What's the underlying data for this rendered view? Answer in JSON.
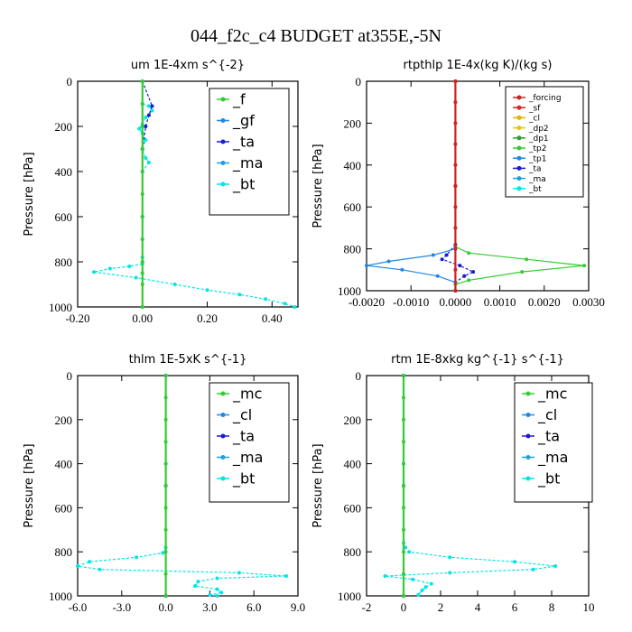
{
  "figure_title": "044_f2c_c4  BUDGET at355E,-5N",
  "chart_data": [
    {
      "type": "line",
      "title": "um  1E-4xm s^{-2}",
      "ylabel": "Pressure [hPa]",
      "xlim": [
        -0.2,
        0.48
      ],
      "ylim": [
        1000,
        0
      ],
      "xticks": [
        -0.2,
        0.0,
        0.2,
        0.4
      ],
      "xtick_labels": [
        "-0.20",
        "0.00",
        "0.20",
        "0.40"
      ],
      "yticks": [
        0,
        200,
        400,
        600,
        800,
        1000
      ],
      "ytick_labels": [
        "0",
        "200",
        "400",
        "600",
        "800",
        "1000"
      ],
      "legend_position": "top-right",
      "series": [
        {
          "name": "_f",
          "color": "#33cc33",
          "x": [
            0,
            0,
            0,
            0,
            0,
            0,
            0,
            0,
            0,
            0,
            0,
            0
          ],
          "y": [
            0,
            100,
            200,
            300,
            400,
            500,
            600,
            700,
            800,
            850,
            900,
            1000
          ]
        },
        {
          "name": "_gf",
          "color": "#1e88e5",
          "x": [
            0,
            0,
            0,
            0,
            0,
            0
          ],
          "y": [
            0,
            200,
            400,
            600,
            800,
            1000
          ]
        },
        {
          "name": "_ta",
          "color": "#1a1ad6",
          "x": [
            0,
            0.03,
            0.02,
            0.01,
            0.0,
            0.0
          ],
          "y": [
            0,
            110,
            150,
            200,
            300,
            1000
          ]
        },
        {
          "name": "_ma",
          "color": "#1ea0e0",
          "x": [
            0,
            0,
            0,
            0
          ],
          "y": [
            0,
            300,
            700,
            1000
          ]
        },
        {
          "name": "_bt",
          "color": "#00e5e5",
          "x": [
            0.0,
            0.02,
            0.03,
            0.01,
            0.0,
            -0.01,
            0.0,
            0.01,
            0.0,
            0.01,
            0.02,
            0.0,
            0.0,
            0.0,
            0.0,
            -0.04,
            -0.1,
            -0.15,
            -0.02,
            0.1,
            0.2,
            0.3,
            0.38,
            0.44,
            0.47
          ],
          "y": [
            100,
            110,
            130,
            160,
            190,
            210,
            230,
            260,
            300,
            340,
            360,
            400,
            600,
            780,
            810,
            820,
            830,
            845,
            870,
            900,
            925,
            945,
            965,
            985,
            1000
          ]
        }
      ]
    },
    {
      "type": "line",
      "title": "rtpthlp  1E-4x(kg K)/(kg s)",
      "ylabel": "Pressure [hPa]",
      "xlim": [
        -0.002,
        0.003
      ],
      "ylim": [
        1000,
        0
      ],
      "xticks": [
        -0.002,
        -0.001,
        0.0,
        0.001,
        0.002,
        0.003
      ],
      "xtick_labels": [
        "-0.0020",
        "-0.0010",
        "0.0000",
        "0.0010",
        "0.0020",
        "0.0030"
      ],
      "yticks": [
        0,
        200,
        400,
        600,
        800,
        1000
      ],
      "ytick_labels": [
        "0",
        "200",
        "400",
        "600",
        "800",
        "1000"
      ],
      "legend_position": "top-right",
      "series": [
        {
          "name": "_forcing",
          "color": "#cc2222",
          "x": [
            0,
            0,
            0,
            0,
            0,
            0,
            0,
            0,
            0,
            0,
            0
          ],
          "y": [
            0,
            100,
            200,
            300,
            400,
            500,
            600,
            700,
            800,
            900,
            1000
          ]
        },
        {
          "name": "_sf",
          "color": "#dd2222",
          "x": [
            0,
            0,
            0
          ],
          "y": [
            0,
            500,
            1000
          ]
        },
        {
          "name": "_cl",
          "color": "#e0b000",
          "x": [
            0,
            0,
            0
          ],
          "y": [
            0,
            500,
            1000
          ]
        },
        {
          "name": "_dp2",
          "color": "#e6c800",
          "x": [
            0,
            0,
            0
          ],
          "y": [
            0,
            500,
            1000
          ]
        },
        {
          "name": "_dp1",
          "color": "#2e9e2e",
          "x": [
            0,
            0,
            0
          ],
          "y": [
            0,
            500,
            1000
          ]
        },
        {
          "name": "_tp2",
          "color": "#33cc33",
          "x": [
            0,
            0.0003,
            0.0016,
            0.0029,
            0.0015,
            0.0003,
            0
          ],
          "y": [
            790,
            820,
            850,
            880,
            910,
            950,
            970
          ]
        },
        {
          "name": "_tp1",
          "color": "#1e88e5",
          "x": [
            0,
            -0.0005,
            -0.0015,
            -0.002,
            -0.0012,
            -0.0004,
            0
          ],
          "y": [
            800,
            830,
            860,
            880,
            900,
            930,
            960
          ]
        },
        {
          "name": "_ta",
          "color": "#1a1ad6",
          "x": [
            0,
            -0.0002,
            -0.0003,
            0.0001,
            0.0004,
            0.0002,
            0
          ],
          "y": [
            780,
            830,
            850,
            880,
            910,
            930,
            960
          ]
        },
        {
          "name": "_ma",
          "color": "#1ea0e0",
          "x": [
            0,
            0,
            0
          ],
          "y": [
            0,
            500,
            1000
          ]
        },
        {
          "name": "_bt",
          "color": "#00e5e5",
          "x": [
            0,
            0,
            0
          ],
          "y": [
            0,
            500,
            1000
          ]
        }
      ]
    },
    {
      "type": "line",
      "title": "thlm  1E-5xK s^{-1}",
      "ylabel": "Pressure [hPa]",
      "xlim": [
        -6.0,
        9.0
      ],
      "ylim": [
        1000,
        0
      ],
      "xticks": [
        -6,
        -3,
        0,
        3,
        6,
        9
      ],
      "xtick_labels": [
        "-6.0",
        "-3.0",
        "0.0",
        "3.0",
        "6.0",
        "9.0"
      ],
      "yticks": [
        0,
        200,
        400,
        600,
        800,
        1000
      ],
      "ytick_labels": [
        "0",
        "200",
        "400",
        "600",
        "800",
        "1000"
      ],
      "legend_position": "top-right",
      "series": [
        {
          "name": "_mc",
          "color": "#33cc33",
          "x": [
            0,
            0,
            0,
            0,
            0,
            0,
            0,
            0,
            0,
            0,
            0
          ],
          "y": [
            0,
            100,
            200,
            300,
            400,
            500,
            600,
            700,
            800,
            900,
            1000
          ]
        },
        {
          "name": "_cl",
          "color": "#1e88e5",
          "x": [
            0,
            0,
            0
          ],
          "y": [
            0,
            500,
            1000
          ]
        },
        {
          "name": "_ta",
          "color": "#1a1ad6",
          "x": [
            0,
            0,
            0
          ],
          "y": [
            0,
            500,
            1000
          ]
        },
        {
          "name": "_ma",
          "color": "#1ea0e0",
          "x": [
            0,
            0,
            0
          ],
          "y": [
            0,
            500,
            1000
          ]
        },
        {
          "name": "_bt",
          "color": "#00e5e5",
          "x": [
            0,
            0,
            0,
            -0.2,
            -2.0,
            -5.2,
            -6.0,
            -4.5,
            5.0,
            8.2,
            3.5,
            2.2,
            2.0,
            3.5,
            3.8,
            3.0,
            3.5
          ],
          "y": [
            0,
            400,
            780,
            805,
            825,
            845,
            865,
            880,
            895,
            910,
            920,
            935,
            955,
            970,
            985,
            995,
            1000
          ]
        }
      ]
    },
    {
      "type": "line",
      "title": "rtm  1E-8xkg kg^{-1} s^{-1}",
      "ylabel": "Pressure [hPa]",
      "xlim": [
        -2,
        10
      ],
      "ylim": [
        1000,
        0
      ],
      "xticks": [
        -2,
        0,
        2,
        4,
        6,
        8,
        10
      ],
      "xtick_labels": [
        "-2",
        "0",
        "2",
        "4",
        "6",
        "8",
        "10"
      ],
      "yticks": [
        0,
        200,
        400,
        600,
        800,
        1000
      ],
      "ytick_labels": [
        "0",
        "200",
        "400",
        "600",
        "800",
        "1000"
      ],
      "legend_position": "top-right",
      "series": [
        {
          "name": "_mc",
          "color": "#33cc33",
          "x": [
            0,
            0,
            0,
            0,
            0,
            0,
            0,
            0,
            0,
            0,
            0
          ],
          "y": [
            0,
            100,
            200,
            300,
            400,
            500,
            600,
            700,
            800,
            900,
            1000
          ]
        },
        {
          "name": "_cl",
          "color": "#1e88e5",
          "x": [
            0,
            0,
            0
          ],
          "y": [
            0,
            500,
            1000
          ]
        },
        {
          "name": "_ta",
          "color": "#1a1ad6",
          "x": [
            0,
            0,
            0
          ],
          "y": [
            0,
            500,
            1000
          ]
        },
        {
          "name": "_ma",
          "color": "#1ea0e0",
          "x": [
            0,
            0,
            0
          ],
          "y": [
            0,
            500,
            1000
          ]
        },
        {
          "name": "_bt",
          "color": "#00e5e5",
          "x": [
            0,
            0,
            0,
            0.1,
            0.3,
            2.5,
            6.0,
            8.2,
            7.0,
            2.5,
            -1.0,
            0.5,
            1.5,
            1.2,
            1.0,
            0.8
          ],
          "y": [
            0,
            400,
            760,
            780,
            800,
            825,
            845,
            865,
            880,
            895,
            910,
            925,
            945,
            960,
            975,
            995
          ]
        }
      ]
    }
  ]
}
